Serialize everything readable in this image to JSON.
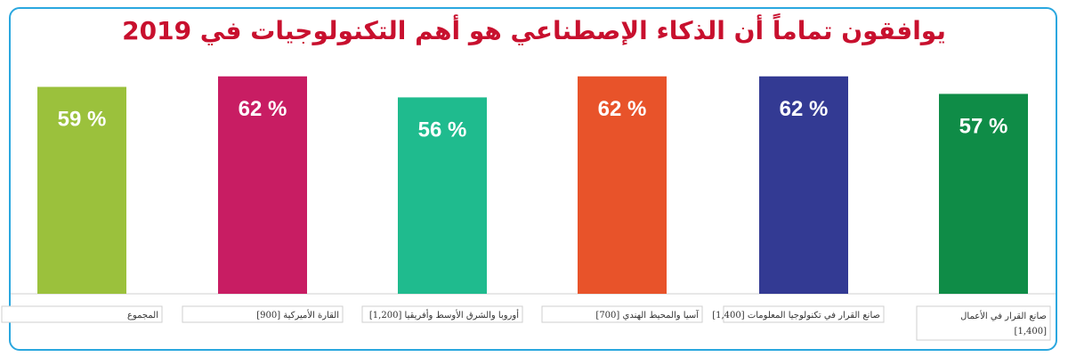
{
  "title": "يوافقون تماماً أن الذكاء الإصطناعي هو أهم التكنولوجيات في 2019",
  "chart_data": {
    "type": "bar",
    "categories": [
      "المجموع",
      "القارة الأميركية [900]",
      "أوروبا والشرق الأوسط وأفريقيا [1,200]",
      "آسيا والمحيط الهندي [700]",
      "صانع القرار في تكنولوجيا المعلومات [1,400]",
      "صانع القرار في الأعمال [1,400]"
    ],
    "values": [
      59,
      62,
      56,
      62,
      62,
      57
    ],
    "value_labels": [
      "59 %",
      "62 %",
      "56 %",
      "62 %",
      "62 %",
      "57 %"
    ],
    "colors": [
      "#9bc13c",
      "#c81d63",
      "#1fbb8e",
      "#e8532a",
      "#333a93",
      "#0f8c47"
    ],
    "ylim": [
      0,
      66
    ],
    "grid": false,
    "legend": "none"
  }
}
